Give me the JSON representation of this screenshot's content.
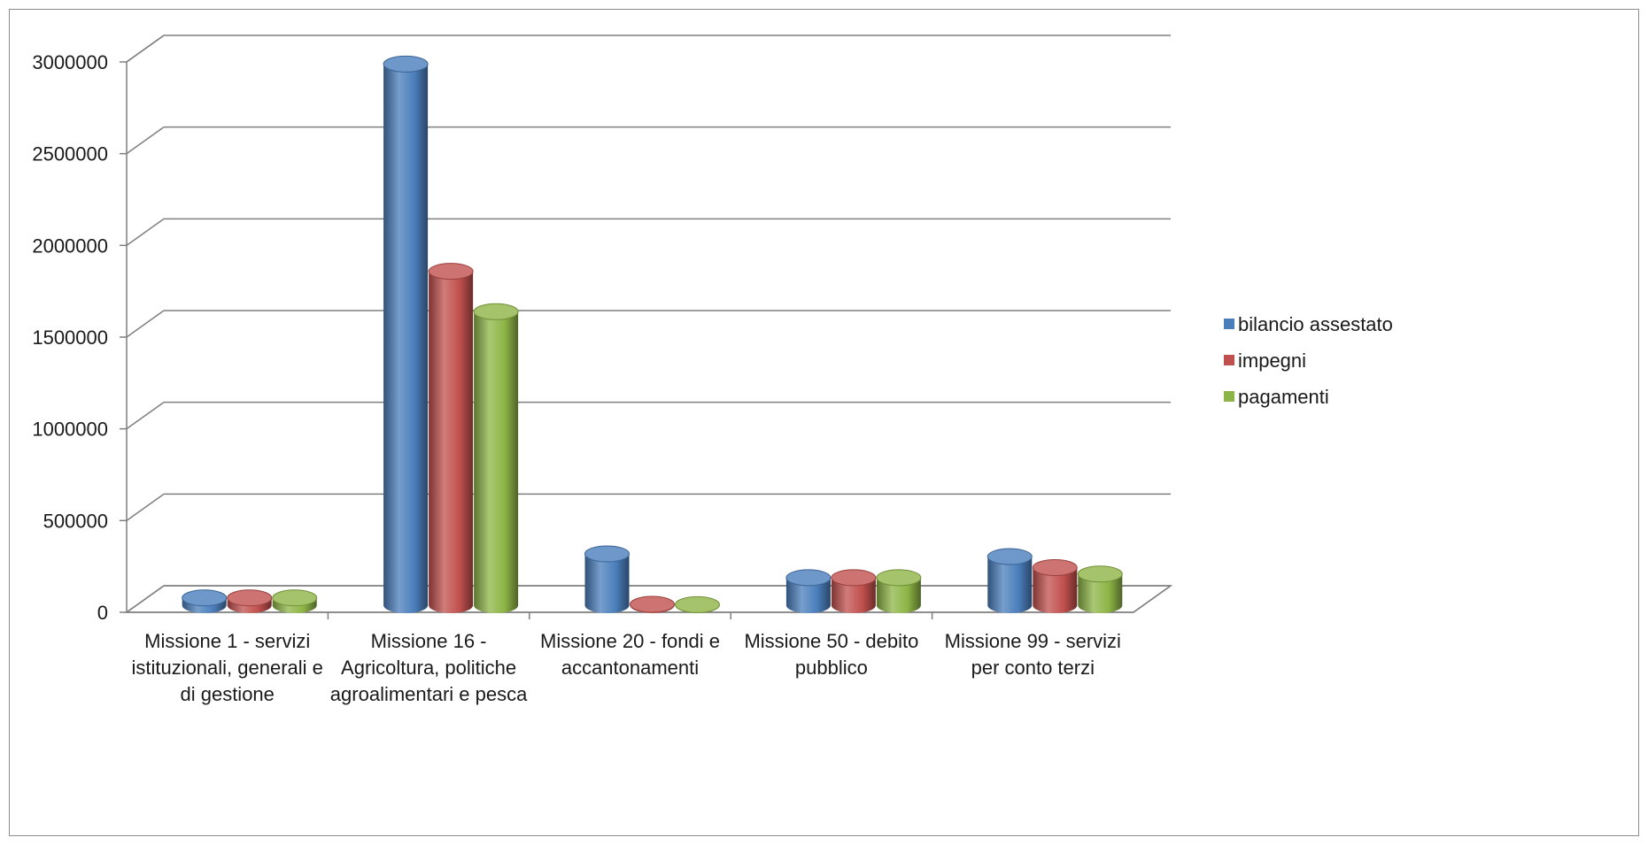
{
  "chart_data": {
    "type": "bar",
    "style": "3d-cylinder",
    "title": "",
    "xlabel": "",
    "ylabel": "",
    "ylim": [
      0,
      3000000
    ],
    "yticks": [
      "0",
      "500000",
      "1000000",
      "1500000",
      "2000000",
      "2500000",
      "3000000"
    ],
    "grid": true,
    "legend_position": "right",
    "categories": [
      [
        "Missione 1 - servizi",
        "istituzionali, generali e",
        "di gestione"
      ],
      [
        "Missione 16 -",
        "Agricoltura, politiche",
        "agroalimentari e pesca"
      ],
      [
        "Missione 20 - fondi e",
        "accantonamenti"
      ],
      [
        "Missione 50 - debito",
        "pubblico"
      ],
      [
        "Missione 99 - servizi",
        "per conto terzi"
      ]
    ],
    "series": [
      {
        "name": "bilancio assestato",
        "color": "#4a7ebb",
        "values": [
          40000,
          2950000,
          280000,
          150000,
          265000
        ]
      },
      {
        "name": "impegni",
        "color": "#c0504d",
        "values": [
          40000,
          1820000,
          5000,
          150000,
          205000
        ]
      },
      {
        "name": "pagamenti",
        "color": "#8db446",
        "values": [
          40000,
          1600000,
          3000,
          150000,
          170000
        ]
      }
    ]
  }
}
